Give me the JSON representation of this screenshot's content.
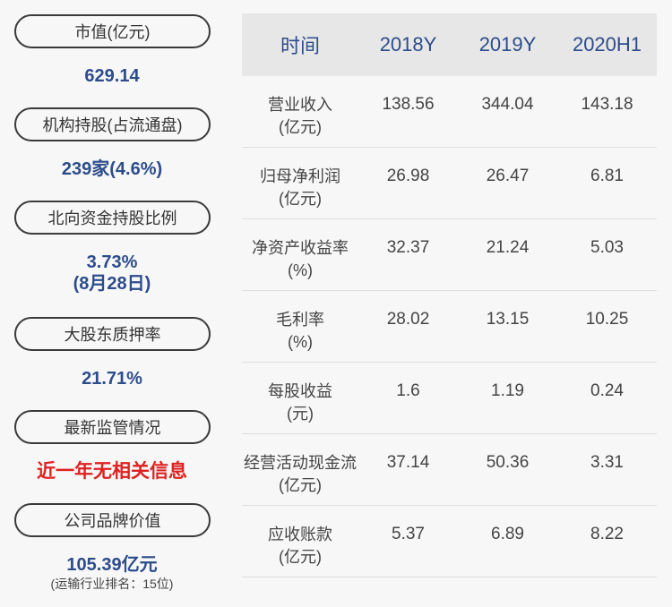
{
  "left_panel": {
    "market_cap": {
      "label": "市值(亿元)",
      "value": "629.14"
    },
    "institutional": {
      "label": "机构持股(占流通盘)",
      "value": "239家(4.6%)"
    },
    "northbound": {
      "label": "北向资金持股比例",
      "value": "3.73%",
      "date": "(8月28日)"
    },
    "pledge": {
      "label": "大股东质押率",
      "value": "21.71%"
    },
    "regulation": {
      "label": "最新监管情况",
      "value": "近一年无相关信息"
    },
    "brand": {
      "label": "公司品牌价值",
      "value": "105.39亿元",
      "note": "(运输行业排名：15位)"
    }
  },
  "table": {
    "headers": [
      "时间",
      "2018Y",
      "2019Y",
      "2020H1"
    ],
    "rows": [
      {
        "name": "营业收入",
        "unit": "(亿元)",
        "values": [
          "138.56",
          "344.04",
          "143.18"
        ]
      },
      {
        "name": "归母净利润",
        "unit": "(亿元)",
        "values": [
          "26.98",
          "26.47",
          "6.81"
        ]
      },
      {
        "name": "净资产收益率",
        "unit": "(%)",
        "values": [
          "32.37",
          "21.24",
          "5.03"
        ]
      },
      {
        "name": "毛利率",
        "unit": "(%)",
        "values": [
          "28.02",
          "13.15",
          "10.25"
        ]
      },
      {
        "name": "每股收益",
        "unit": "(元)",
        "values": [
          "1.6",
          "1.19",
          "0.24"
        ]
      },
      {
        "name": "经营活动现金流",
        "unit": "(亿元)",
        "values": [
          "37.14",
          "50.36",
          "3.31"
        ]
      },
      {
        "name": "应收账款",
        "unit": "(亿元)",
        "values": [
          "5.37",
          "6.89",
          "8.22"
        ]
      }
    ]
  }
}
